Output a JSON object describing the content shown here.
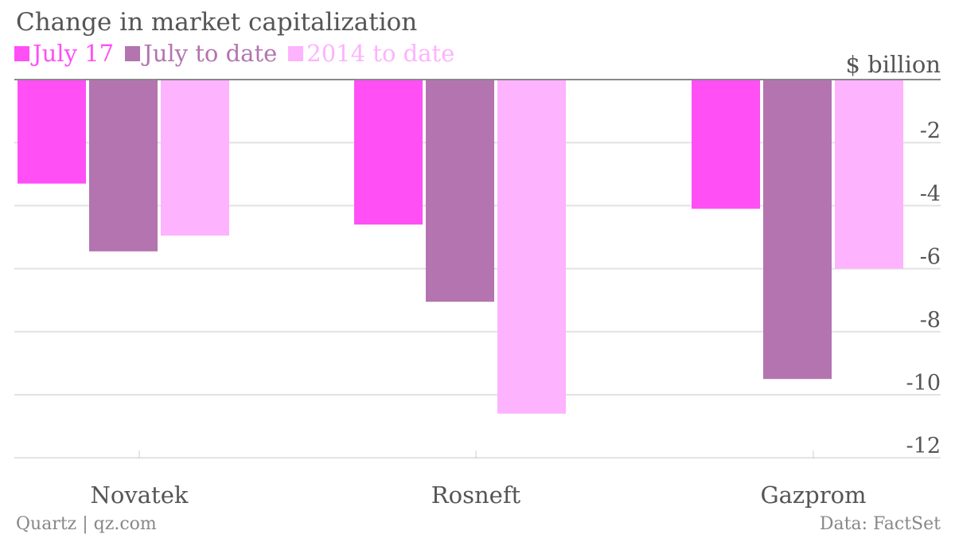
{
  "chart_data": {
    "type": "bar",
    "title": "Change in market capitalization",
    "ylabel": "$ billion",
    "categories": [
      "Novatek",
      "Rosneft",
      "Gazprom"
    ],
    "series": [
      {
        "name": "July 17",
        "color": "#ff4ff5",
        "values": [
          -3.3,
          -4.6,
          -4.1
        ]
      },
      {
        "name": "July to date",
        "color": "#b374b0",
        "values": [
          -5.45,
          -7.05,
          -9.5
        ]
      },
      {
        "name": "2014 to date",
        "color": "#fdb3fd",
        "values": [
          -4.95,
          -10.6,
          -6.0
        ]
      }
    ],
    "ylim": [
      -12,
      0
    ],
    "yticks": [
      -2,
      -4,
      -6,
      -8,
      -10,
      -12
    ],
    "ytick_labels": [
      "-2",
      "-4",
      "-6",
      "-8",
      "-10",
      "-12"
    ],
    "grid": true,
    "legend_position": "top-left"
  },
  "footer": {
    "source_left": "Quartz | qz.com",
    "source_right": "Data: FactSet"
  }
}
